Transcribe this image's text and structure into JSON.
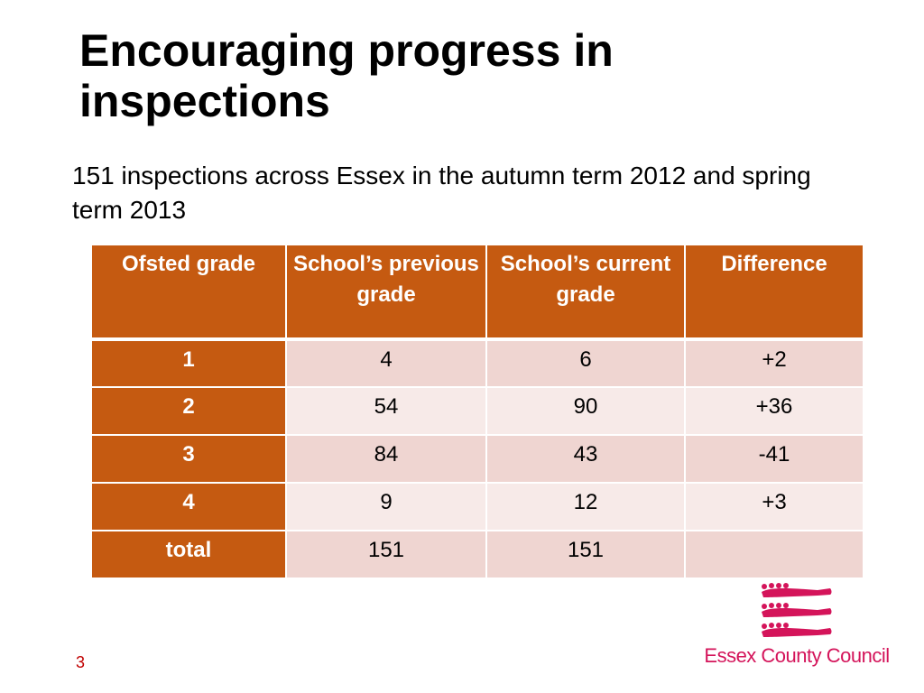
{
  "slide": {
    "title": "Encouraging progress in inspections",
    "subtitle": "151 inspections across Essex in the autumn term 2012 and spring term 2013",
    "page_number": "3"
  },
  "table": {
    "headers": [
      "Ofsted grade",
      "School’s previous grade",
      "School’s current grade",
      "Difference"
    ],
    "rows": [
      [
        "1",
        "4",
        "6",
        "+2"
      ],
      [
        "2",
        "54",
        "90",
        "+36"
      ],
      [
        "3",
        "84",
        "43",
        "-41"
      ],
      [
        "4",
        "9",
        "12",
        "+3"
      ],
      [
        "total",
        "151",
        "151",
        ""
      ]
    ]
  },
  "logo": {
    "name": "Essex County Council",
    "icon": "three-seaxes-emblem",
    "color": "#d4145a"
  },
  "colors": {
    "header_fill": "#c55a11",
    "row_fill_dark": "#efd5d1",
    "row_fill_light": "#f7eae8",
    "page_number": "#c00000"
  }
}
